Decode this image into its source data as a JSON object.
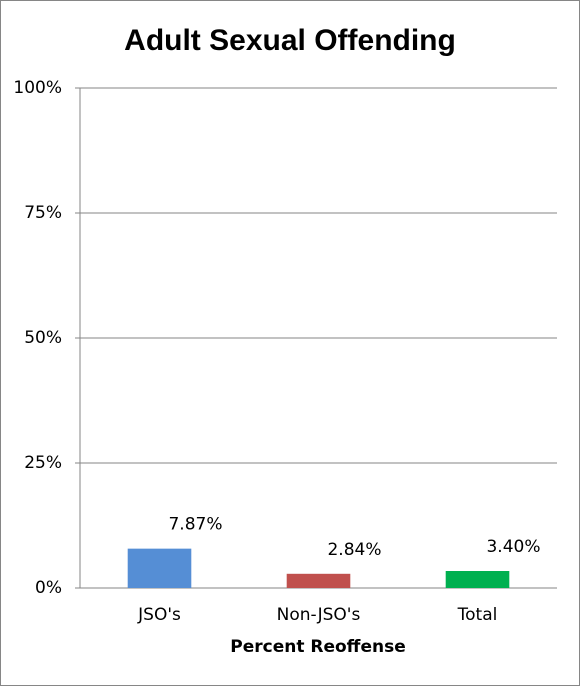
{
  "chart_data": {
    "type": "bar",
    "title": "Adult Sexual Offending",
    "x_label": "Percent Reoffense",
    "categories": [
      "JSO's",
      "Non-JSO's",
      "Total"
    ],
    "values": [
      7.87,
      2.84,
      3.4
    ],
    "value_labels": [
      "7.87%",
      "2.84%",
      "3.40%"
    ],
    "colors": [
      "#558ed5",
      "#c0504d",
      "#00b050"
    ],
    "ylim": [
      0,
      100
    ],
    "yticks": [
      {
        "value": 0,
        "label": "0%"
      },
      {
        "value": 25,
        "label": "25%"
      },
      {
        "value": 50,
        "label": "50%"
      },
      {
        "value": 75,
        "label": "75%"
      },
      {
        "value": 100,
        "label": "100%"
      }
    ],
    "grid": true
  }
}
